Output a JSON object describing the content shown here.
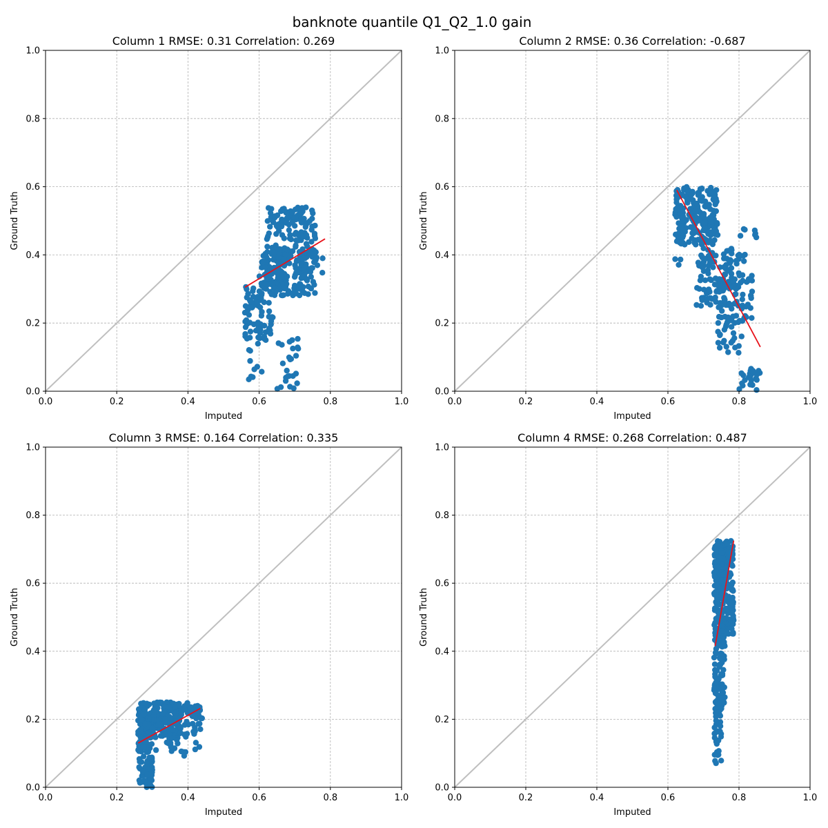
{
  "figure": {
    "title": "banknote quantile Q1_Q2_1.0 gain"
  },
  "colors": {
    "points": "#1f77b4",
    "fit_line": "#e8121a",
    "identity_line": "#bfbfbf",
    "grid": "#b0b0b0"
  },
  "chart_data": [
    {
      "type": "scatter",
      "title": "Column 1 RMSE: 0.31 Correlation: 0.269",
      "xlabel": "Imputed",
      "ylabel": "Ground  Truth",
      "xlim": [
        0,
        1
      ],
      "ylim": [
        0,
        1
      ],
      "xticks": [
        "0.0",
        "0.2",
        "0.4",
        "0.6",
        "0.8",
        "1.0"
      ],
      "yticks": [
        "0.0",
        "0.2",
        "0.4",
        "0.6",
        "0.8",
        "1.0"
      ],
      "grid": true,
      "identity_line": [
        [
          0,
          0
        ],
        [
          1,
          1
        ]
      ],
      "fit_line": [
        [
          0.56,
          0.305
        ],
        [
          0.785,
          0.447
        ]
      ],
      "clusters": [
        {
          "x": [
            0.62,
            0.76
          ],
          "y": [
            0.28,
            0.54
          ],
          "n": 260
        },
        {
          "x": [
            0.6,
            0.68
          ],
          "y": [
            0.3,
            0.42
          ],
          "n": 90
        },
        {
          "x": [
            0.56,
            0.64
          ],
          "y": [
            0.15,
            0.32
          ],
          "n": 80
        },
        {
          "x": [
            0.57,
            0.61
          ],
          "y": [
            0.02,
            0.15
          ],
          "n": 10
        },
        {
          "x": [
            0.65,
            0.71
          ],
          "y": [
            0.0,
            0.16
          ],
          "n": 25
        },
        {
          "x": [
            0.74,
            0.78
          ],
          "y": [
            0.34,
            0.42
          ],
          "n": 8
        }
      ]
    },
    {
      "type": "scatter",
      "title": "Column 2 RMSE: 0.36 Correlation: -0.687",
      "xlabel": "Imputed",
      "ylabel": "Ground  Truth",
      "xlim": [
        0,
        1
      ],
      "ylim": [
        0,
        1
      ],
      "xticks": [
        "0.0",
        "0.2",
        "0.4",
        "0.6",
        "0.8",
        "1.0"
      ],
      "yticks": [
        "0.0",
        "0.2",
        "0.4",
        "0.6",
        "0.8",
        "1.0"
      ],
      "grid": true,
      "identity_line": [
        [
          0,
          0
        ],
        [
          1,
          1
        ]
      ],
      "fit_line": [
        [
          0.625,
          0.59
        ],
        [
          0.86,
          0.13
        ]
      ],
      "clusters": [
        {
          "x": [
            0.62,
            0.74
          ],
          "y": [
            0.43,
            0.6
          ],
          "n": 220
        },
        {
          "x": [
            0.68,
            0.8
          ],
          "y": [
            0.25,
            0.42
          ],
          "n": 120
        },
        {
          "x": [
            0.73,
            0.84
          ],
          "y": [
            0.2,
            0.35
          ],
          "n": 60
        },
        {
          "x": [
            0.74,
            0.82
          ],
          "y": [
            0.11,
            0.22
          ],
          "n": 25
        },
        {
          "x": [
            0.8,
            0.86
          ],
          "y": [
            0.0,
            0.07
          ],
          "n": 25
        },
        {
          "x": [
            0.8,
            0.85
          ],
          "y": [
            0.3,
            0.5
          ],
          "n": 12
        },
        {
          "x": [
            0.62,
            0.64
          ],
          "y": [
            0.37,
            0.39
          ],
          "n": 3
        }
      ]
    },
    {
      "type": "scatter",
      "title": "Column 3 RMSE: 0.164 Correlation: 0.335",
      "xlabel": "Imputed",
      "ylabel": "Ground  Truth",
      "xlim": [
        0,
        1
      ],
      "ylim": [
        0,
        1
      ],
      "xticks": [
        "0.0",
        "0.2",
        "0.4",
        "0.6",
        "0.8",
        "1.0"
      ],
      "yticks": [
        "0.0",
        "0.2",
        "0.4",
        "0.6",
        "0.8",
        "1.0"
      ],
      "grid": true,
      "identity_line": [
        [
          0,
          0
        ],
        [
          1,
          1
        ]
      ],
      "fit_line": [
        [
          0.26,
          0.13
        ],
        [
          0.435,
          0.232
        ]
      ],
      "clusters": [
        {
          "x": [
            0.26,
            0.38
          ],
          "y": [
            0.15,
            0.25
          ],
          "n": 220
        },
        {
          "x": [
            0.26,
            0.3
          ],
          "y": [
            0.0,
            0.15
          ],
          "n": 90
        },
        {
          "x": [
            0.3,
            0.44
          ],
          "y": [
            0.09,
            0.24
          ],
          "n": 70
        },
        {
          "x": [
            0.38,
            0.44
          ],
          "y": [
            0.2,
            0.25
          ],
          "n": 25
        }
      ]
    },
    {
      "type": "scatter",
      "title": "Column 4 RMSE: 0.268 Correlation: 0.487",
      "xlabel": "Imputed",
      "ylabel": "Ground  Truth",
      "xlim": [
        0,
        1
      ],
      "ylim": [
        0,
        1
      ],
      "xticks": [
        "0.0",
        "0.2",
        "0.4",
        "0.6",
        "0.8",
        "1.0"
      ],
      "yticks": [
        "0.0",
        "0.2",
        "0.4",
        "0.6",
        "0.8",
        "1.0"
      ],
      "grid": true,
      "identity_line": [
        [
          0,
          0
        ],
        [
          1,
          1
        ]
      ],
      "fit_line": [
        [
          0.733,
          0.415
        ],
        [
          0.785,
          0.725
        ]
      ],
      "clusters": [
        {
          "x": [
            0.73,
            0.785
          ],
          "y": [
            0.45,
            0.725
          ],
          "n": 280
        },
        {
          "x": [
            0.73,
            0.76
          ],
          "y": [
            0.22,
            0.46
          ],
          "n": 100
        },
        {
          "x": [
            0.73,
            0.75
          ],
          "y": [
            0.07,
            0.22
          ],
          "n": 30
        }
      ]
    }
  ]
}
